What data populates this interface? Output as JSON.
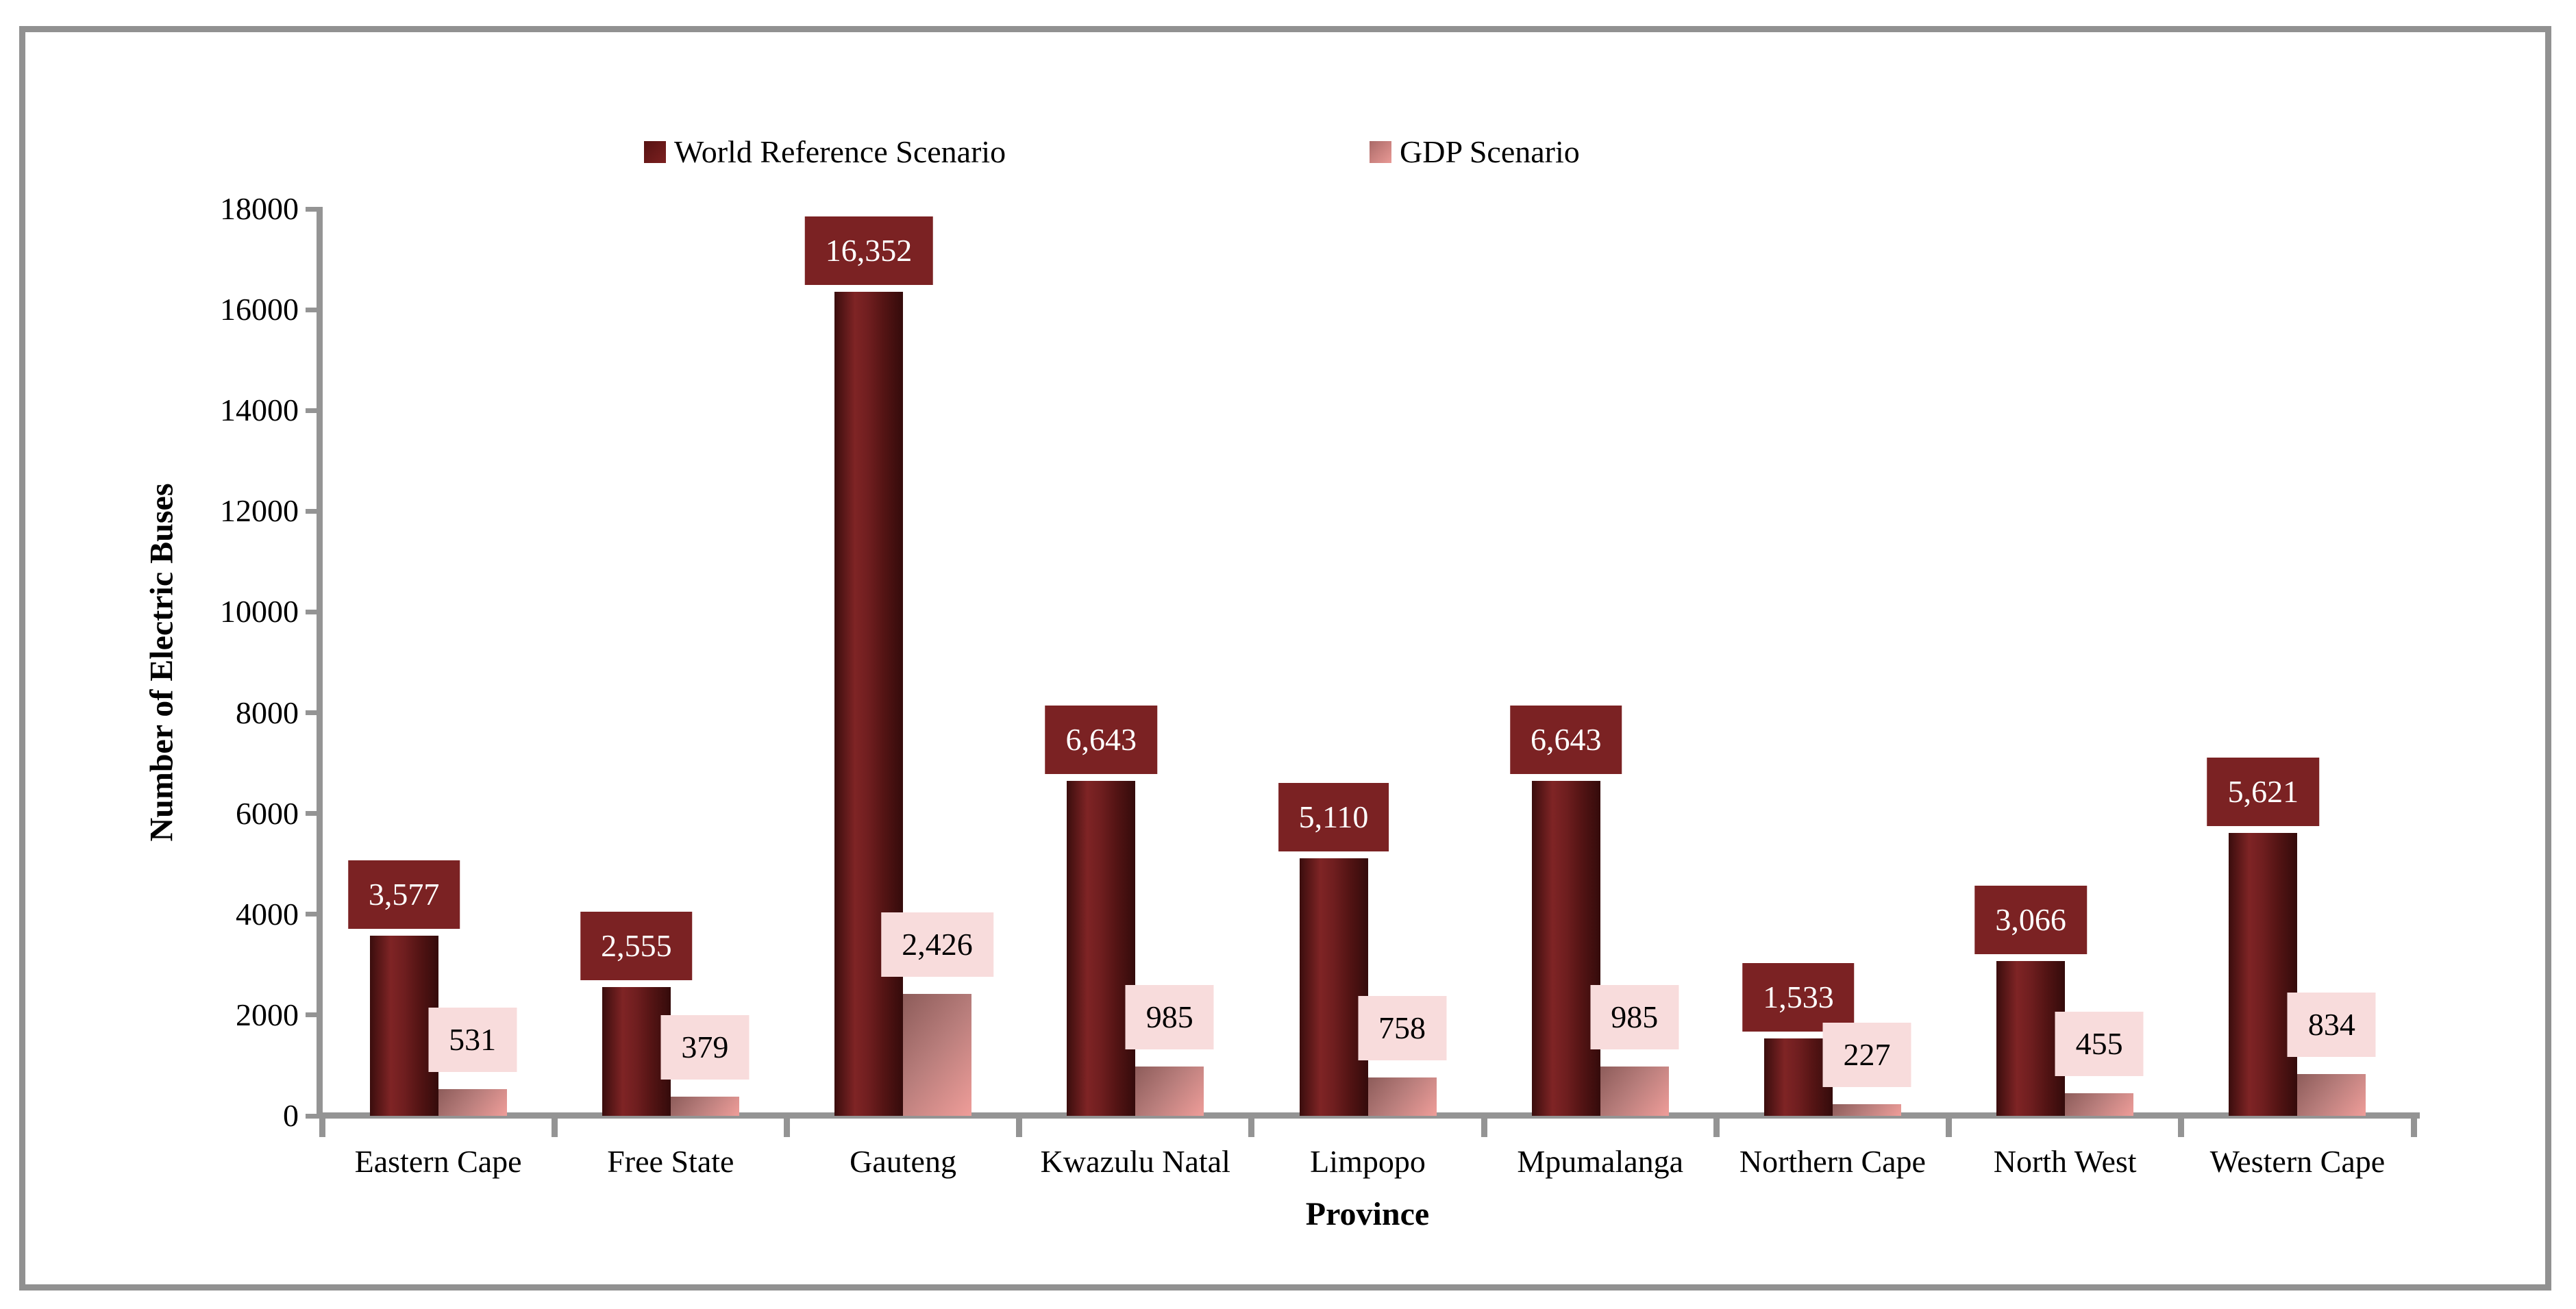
{
  "legend": [
    {
      "label": "World Reference Scenario"
    },
    {
      "label": "GDP Scenario"
    }
  ],
  "y_axis": {
    "tick_labels": [
      "0",
      "2000",
      "4000",
      "6000",
      "8000",
      "10000",
      "12000",
      "14000",
      "16000",
      "18000"
    ]
  },
  "chart_data": {
    "type": "bar",
    "title": "",
    "xlabel": "Province",
    "ylabel": "Number of Electric Buses",
    "ylim": [
      0,
      18000
    ],
    "ytick_step": 2000,
    "grid": false,
    "legend_position": "top",
    "categories": [
      "Eastern Cape",
      "Free State",
      "Gauteng",
      "Kwazulu Natal",
      "Limpopo",
      "Mpumalanga",
      "Northern Cape",
      "North West",
      "Western Cape"
    ],
    "series": [
      {
        "name": "World Reference Scenario",
        "values": [
          3577,
          2555,
          16352,
          6643,
          5110,
          6643,
          1533,
          3066,
          5621
        ],
        "labels": [
          "3,577",
          "2,555",
          "16,352",
          "6,643",
          "5,110",
          "6,643",
          "1,533",
          "3,066",
          "5,621"
        ]
      },
      {
        "name": "GDP Scenario",
        "values": [
          531,
          379,
          2426,
          985,
          758,
          985,
          227,
          455,
          834
        ],
        "labels": [
          "531",
          "379",
          "2,426",
          "985",
          "758",
          "985",
          "227",
          "455",
          "834"
        ]
      }
    ]
  },
  "colors": {
    "border": "#919191",
    "axis": "#949494",
    "bar_dark_mid": "#7f2425",
    "bar_pink_start": "#8d5c5a",
    "bar_pink_end": "#ef9d99",
    "label_dark_bg": "#7b2223",
    "label_dark_text": "#ffffff",
    "label_pink_bg": "#f8dcdc",
    "label_pink_text": "#000000",
    "legend_dark_a": "#551212",
    "legend_dark_b": "#7c2020",
    "legend_pink_a": "#aa6a68",
    "legend_pink_b": "#e99995"
  }
}
